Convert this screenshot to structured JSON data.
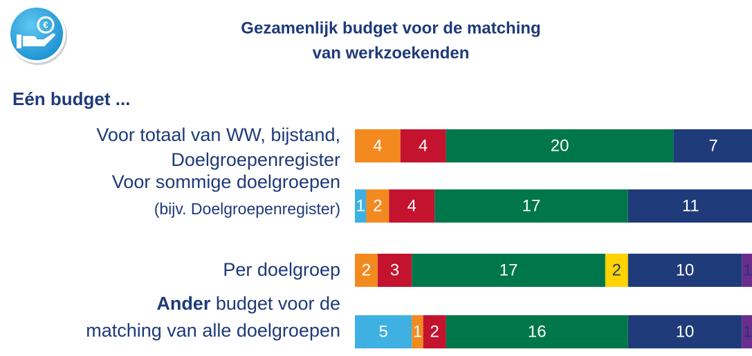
{
  "chart_data": {
    "type": "stacked_barh",
    "title": [
      "Gezamenlijk budget voor de matching",
      "van werkzoekenden"
    ],
    "section_heading": "Eén budget ...",
    "categories": [
      [
        [
          "Voor totaal van WW,  bijstand,"
        ],
        [
          "Doelgroepenregister"
        ]
      ],
      [
        [
          "Voor sommige doelgroepen"
        ],
        [
          {
            "text": "(bijv. Doelgroepenregister)",
            "small": true
          }
        ]
      ],
      [
        [
          "Per doelgroep"
        ]
      ],
      [
        [
          {
            "text": "Ander",
            "bold": true
          },
          " budget voor de"
        ],
        [
          "matching van alle doelgroepen"
        ]
      ]
    ],
    "series": [
      {
        "color": "#3eb1e2",
        "label_color": "#ffffff",
        "values": [
          null,
          1,
          null,
          5
        ]
      },
      {
        "color": "#f28a1f",
        "label_color": "#ffffff",
        "values": [
          4,
          2,
          2,
          1
        ]
      },
      {
        "color": "#c4132f",
        "label_color": "#ffffff",
        "values": [
          4,
          4,
          3,
          2
        ]
      },
      {
        "color": "#00774b",
        "label_color": "#ffffff",
        "values": [
          20,
          17,
          17,
          16
        ]
      },
      {
        "color": "#ffd200",
        "label_color": "#1e3a78",
        "values": [
          null,
          null,
          2,
          null
        ]
      },
      {
        "color": "#1f3b79",
        "label_color": "#ffffff",
        "values": [
          7,
          11,
          10,
          10
        ]
      },
      {
        "color": "#6a2c8e",
        "label_color": "#1e3a78",
        "values": [
          null,
          null,
          1,
          1
        ]
      }
    ]
  }
}
